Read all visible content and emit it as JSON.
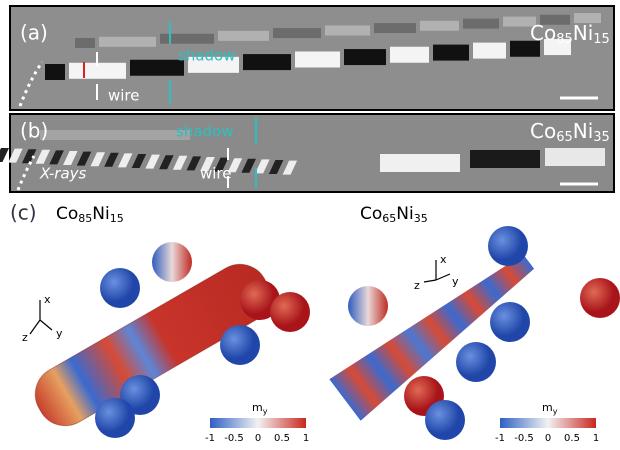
{
  "panels": [
    {
      "label": "(a)",
      "material": [
        "Co",
        "85",
        "Ni",
        "15"
      ],
      "shadow": "shadow",
      "wire": "wire"
    },
    {
      "label": "(b)",
      "material": [
        "Co",
        "65",
        "Ni",
        "35"
      ],
      "shadow": "shadow",
      "wire": "wire",
      "beam": "X-rays"
    },
    {
      "label": "(c)",
      "wires": [
        {
          "material": [
            "Co",
            "85",
            "Ni",
            "15"
          ],
          "axes": [
            "x",
            "y",
            "z"
          ]
        },
        {
          "material": [
            "Co",
            "65",
            "Ni",
            "35"
          ],
          "axes": [
            "x",
            "y",
            "z"
          ]
        }
      ],
      "colorbar": {
        "symbol": "m",
        "subscript": "y",
        "ticks": [
          "-1",
          "-0.5",
          "0",
          "0.5",
          "1"
        ]
      }
    }
  ]
}
